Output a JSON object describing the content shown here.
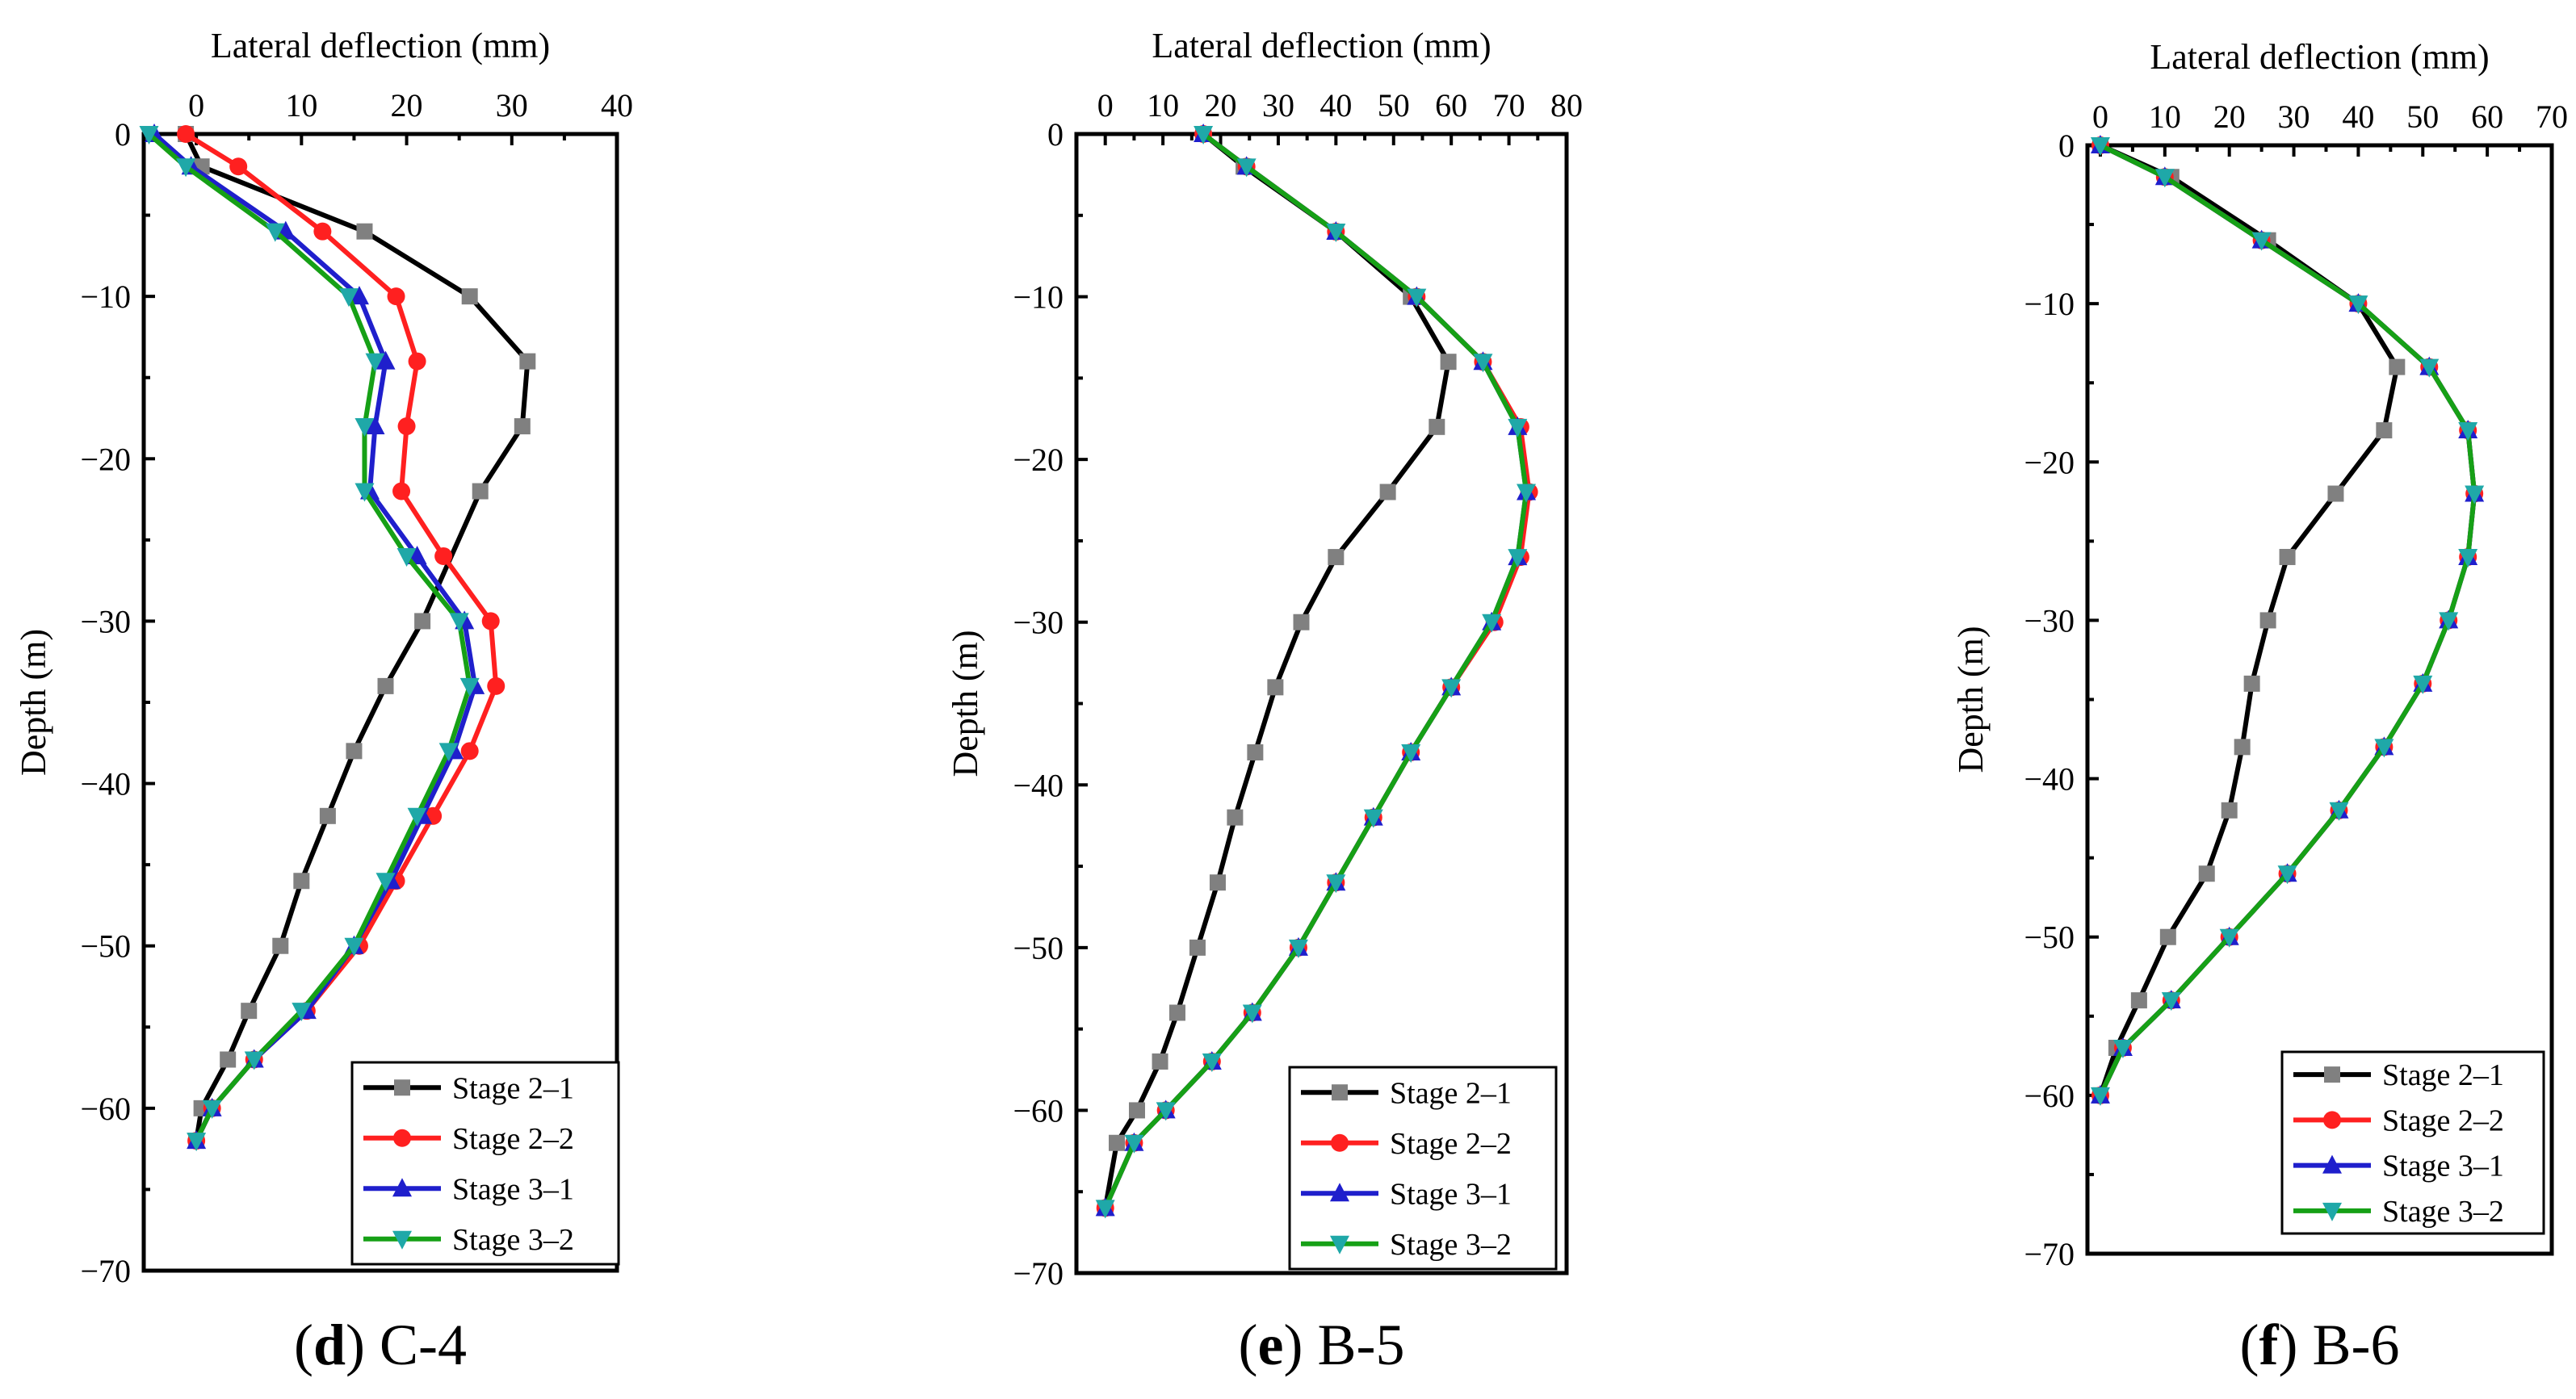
{
  "colors": {
    "stage_2_1": "#000000",
    "marker_2_1": "#808080",
    "stage_2_2": "#ff2020",
    "stage_3_1": "#1f1fcc",
    "stage_3_2": "#16a016",
    "marker_3_x": "#1fa8a8"
  },
  "chart_data": [
    {
      "id": "d",
      "type": "line",
      "title": "C-4",
      "caption_letter": "d",
      "xlabel": "Lateral deflection (mm)",
      "ylabel": "Depth (m)",
      "xlim": [
        -5,
        40
      ],
      "ylim": [
        -70,
        0
      ],
      "xticks": [
        0,
        10,
        20,
        30,
        40
      ],
      "yticks": [
        0,
        -10,
        -20,
        -30,
        -40,
        -50,
        -60,
        -70
      ],
      "legend_position": "bottom-right",
      "series": [
        {
          "name": "Stage 2–1",
          "color_key": "stage_2_1",
          "marker_color_key": "marker_2_1",
          "marker": "square",
          "points": [
            [
              -1,
              0
            ],
            [
              0.5,
              -2
            ],
            [
              16,
              -6
            ],
            [
              26,
              -10
            ],
            [
              31.5,
              -14
            ],
            [
              31,
              -18
            ],
            [
              27,
              -22
            ],
            [
              21.5,
              -30
            ],
            [
              18,
              -34
            ],
            [
              15,
              -38
            ],
            [
              12.5,
              -42
            ],
            [
              10,
              -46
            ],
            [
              8,
              -50
            ],
            [
              5,
              -54
            ],
            [
              3,
              -57
            ],
            [
              0.5,
              -60
            ],
            [
              0,
              -62
            ]
          ]
        },
        {
          "name": "Stage 2–2",
          "color_key": "stage_2_2",
          "marker_color_key": "stage_2_2",
          "marker": "circle",
          "points": [
            [
              -1,
              0
            ],
            [
              4,
              -2
            ],
            [
              12,
              -6
            ],
            [
              19,
              -10
            ],
            [
              21,
              -14
            ],
            [
              20,
              -18
            ],
            [
              19.5,
              -22
            ],
            [
              23.5,
              -26
            ],
            [
              28,
              -30
            ],
            [
              28.5,
              -34
            ],
            [
              26,
              -38
            ],
            [
              22.5,
              -42
            ],
            [
              19,
              -46
            ],
            [
              15.5,
              -50
            ],
            [
              10.5,
              -54
            ],
            [
              5.5,
              -57
            ],
            [
              1.5,
              -60
            ],
            [
              0,
              -62
            ]
          ]
        },
        {
          "name": "Stage 3–1",
          "color_key": "stage_3_1",
          "marker_color_key": "stage_3_1",
          "marker": "triangle-up",
          "points": [
            [
              -4,
              0
            ],
            [
              -0.5,
              -2
            ],
            [
              8.5,
              -6
            ],
            [
              15.5,
              -10
            ],
            [
              18,
              -14
            ],
            [
              17,
              -18
            ],
            [
              16.5,
              -22
            ],
            [
              21,
              -26
            ],
            [
              25.5,
              -30
            ],
            [
              26.5,
              -34
            ],
            [
              24.5,
              -38
            ],
            [
              21.5,
              -42
            ],
            [
              18.5,
              -46
            ],
            [
              15,
              -50
            ],
            [
              10.5,
              -54
            ],
            [
              5.5,
              -57
            ],
            [
              1.5,
              -60
            ],
            [
              0,
              -62
            ]
          ]
        },
        {
          "name": "Stage 3–2",
          "color_key": "stage_3_2",
          "marker_color_key": "marker_3_x",
          "marker": "triangle-down",
          "points": [
            [
              -4.5,
              0
            ],
            [
              -1,
              -2
            ],
            [
              7.5,
              -6
            ],
            [
              14.5,
              -10
            ],
            [
              17,
              -14
            ],
            [
              16,
              -18
            ],
            [
              16,
              -22
            ],
            [
              20,
              -26
            ],
            [
              25,
              -30
            ],
            [
              26,
              -34
            ],
            [
              24,
              -38
            ],
            [
              21,
              -42
            ],
            [
              18,
              -46
            ],
            [
              15,
              -50
            ],
            [
              10,
              -54
            ],
            [
              5.5,
              -57
            ],
            [
              1.5,
              -60
            ],
            [
              0,
              -62
            ]
          ]
        }
      ]
    },
    {
      "id": "e",
      "type": "line",
      "title": "B-5",
      "caption_letter": "e",
      "xlabel": "Lateral deflection (mm)",
      "ylabel": "Depth (m)",
      "xlim": [
        -5,
        80
      ],
      "ylim": [
        -70,
        0
      ],
      "xticks": [
        0,
        10,
        20,
        30,
        40,
        50,
        60,
        70,
        80
      ],
      "yticks": [
        0,
        -10,
        -20,
        -30,
        -40,
        -50,
        -60,
        -70
      ],
      "legend_position": "bottom-right",
      "series": [
        {
          "name": "Stage 2–1",
          "color_key": "stage_2_1",
          "marker_color_key": "marker_2_1",
          "marker": "square",
          "points": [
            [
              17,
              0
            ],
            [
              24,
              -2
            ],
            [
              40,
              -6
            ],
            [
              53,
              -10
            ],
            [
              59.5,
              -14
            ],
            [
              57.5,
              -18
            ],
            [
              49,
              -22
            ],
            [
              40,
              -26
            ],
            [
              34,
              -30
            ],
            [
              29.5,
              -34
            ],
            [
              26,
              -38
            ],
            [
              22.5,
              -42
            ],
            [
              19.5,
              -46
            ],
            [
              16,
              -50
            ],
            [
              12.5,
              -54
            ],
            [
              9.5,
              -57
            ],
            [
              5.5,
              -60
            ],
            [
              2,
              -62
            ],
            [
              0,
              -66
            ]
          ]
        },
        {
          "name": "Stage 2–2",
          "color_key": "stage_2_2",
          "marker_color_key": "stage_2_2",
          "marker": "circle",
          "points": [
            [
              17,
              0
            ],
            [
              24.5,
              -2
            ],
            [
              40,
              -6
            ],
            [
              54,
              -10
            ],
            [
              65.5,
              -14
            ],
            [
              72,
              -18
            ],
            [
              73.5,
              -22
            ],
            [
              72,
              -26
            ],
            [
              67.5,
              -30
            ],
            [
              60,
              -34
            ],
            [
              53,
              -38
            ],
            [
              46.5,
              -42
            ],
            [
              40,
              -46
            ],
            [
              33.5,
              -50
            ],
            [
              25.5,
              -54
            ],
            [
              18.5,
              -57
            ],
            [
              10.5,
              -60
            ],
            [
              5,
              -62
            ],
            [
              0,
              -66
            ]
          ]
        },
        {
          "name": "Stage 3–1",
          "color_key": "stage_3_1",
          "marker_color_key": "stage_3_1",
          "marker": "triangle-up",
          "points": [
            [
              17,
              0
            ],
            [
              24.5,
              -2
            ],
            [
              40,
              -6
            ],
            [
              54,
              -10
            ],
            [
              65.5,
              -14
            ],
            [
              71.5,
              -18
            ],
            [
              73,
              -22
            ],
            [
              71.5,
              -26
            ],
            [
              67,
              -30
            ],
            [
              60,
              -34
            ],
            [
              53,
              -38
            ],
            [
              46.5,
              -42
            ],
            [
              40,
              -46
            ],
            [
              33.5,
              -50
            ],
            [
              25.5,
              -54
            ],
            [
              18.5,
              -57
            ],
            [
              10.5,
              -60
            ],
            [
              5,
              -62
            ],
            [
              0,
              -66
            ]
          ]
        },
        {
          "name": "Stage 3–2",
          "color_key": "stage_3_2",
          "marker_color_key": "marker_3_x",
          "marker": "triangle-down",
          "points": [
            [
              17,
              0
            ],
            [
              24.5,
              -2
            ],
            [
              40,
              -6
            ],
            [
              54,
              -10
            ],
            [
              65.5,
              -14
            ],
            [
              71.5,
              -18
            ],
            [
              73,
              -22
            ],
            [
              71.5,
              -26
            ],
            [
              67,
              -30
            ],
            [
              60,
              -34
            ],
            [
              53,
              -38
            ],
            [
              46.5,
              -42
            ],
            [
              40,
              -46
            ],
            [
              33.5,
              -50
            ],
            [
              25.5,
              -54
            ],
            [
              18.5,
              -57
            ],
            [
              10.5,
              -60
            ],
            [
              5,
              -62
            ],
            [
              0,
              -66
            ]
          ]
        }
      ]
    },
    {
      "id": "f",
      "type": "line",
      "title": "B-6",
      "caption_letter": "f",
      "xlabel": "Lateral deflection (mm)",
      "ylabel": "Depth (m)",
      "xlim": [
        -2,
        70
      ],
      "ylim": [
        -70,
        0
      ],
      "xticks": [
        0,
        10,
        20,
        30,
        40,
        50,
        60,
        70
      ],
      "yticks": [
        0,
        -10,
        -20,
        -30,
        -40,
        -50,
        -60,
        -70
      ],
      "legend_position": "bottom-right",
      "series": [
        {
          "name": "Stage 2–1",
          "color_key": "stage_2_1",
          "marker_color_key": "marker_2_1",
          "marker": "square",
          "points": [
            [
              0,
              0
            ],
            [
              11,
              -2
            ],
            [
              26,
              -6
            ],
            [
              40,
              -10
            ],
            [
              46,
              -14
            ],
            [
              44,
              -18
            ],
            [
              36.5,
              -22
            ],
            [
              29,
              -26
            ],
            [
              26,
              -30
            ],
            [
              23.5,
              -34
            ],
            [
              22,
              -38
            ],
            [
              20,
              -42
            ],
            [
              16.5,
              -46
            ],
            [
              10.5,
              -50
            ],
            [
              6,
              -54
            ],
            [
              2.5,
              -57
            ],
            [
              0,
              -60
            ]
          ]
        },
        {
          "name": "Stage 2–2",
          "color_key": "stage_2_2",
          "marker_color_key": "stage_2_2",
          "marker": "circle",
          "points": [
            [
              0,
              0
            ],
            [
              10,
              -2
            ],
            [
              25,
              -6
            ],
            [
              40,
              -10
            ],
            [
              51,
              -14
            ],
            [
              57,
              -18
            ],
            [
              58,
              -22
            ],
            [
              57,
              -26
            ],
            [
              54,
              -30
            ],
            [
              50,
              -34
            ],
            [
              44,
              -38
            ],
            [
              37,
              -42
            ],
            [
              29,
              -46
            ],
            [
              20,
              -50
            ],
            [
              11,
              -54
            ],
            [
              3.5,
              -57
            ],
            [
              0,
              -60
            ]
          ]
        },
        {
          "name": "Stage 3–1",
          "color_key": "stage_3_1",
          "marker_color_key": "stage_3_1",
          "marker": "triangle-up",
          "points": [
            [
              0,
              0
            ],
            [
              10,
              -2
            ],
            [
              25,
              -6
            ],
            [
              40,
              -10
            ],
            [
              51,
              -14
            ],
            [
              57,
              -18
            ],
            [
              58,
              -22
            ],
            [
              57,
              -26
            ],
            [
              54,
              -30
            ],
            [
              50,
              -34
            ],
            [
              44,
              -38
            ],
            [
              37,
              -42
            ],
            [
              29,
              -46
            ],
            [
              20,
              -50
            ],
            [
              11,
              -54
            ],
            [
              3.5,
              -57
            ],
            [
              0,
              -60
            ]
          ]
        },
        {
          "name": "Stage 3–2",
          "color_key": "stage_3_2",
          "marker_color_key": "marker_3_x",
          "marker": "triangle-down",
          "points": [
            [
              0,
              0
            ],
            [
              10,
              -2
            ],
            [
              25,
              -6
            ],
            [
              40,
              -10
            ],
            [
              51,
              -14
            ],
            [
              57,
              -18
            ],
            [
              58,
              -22
            ],
            [
              57,
              -26
            ],
            [
              54,
              -30
            ],
            [
              50,
              -34
            ],
            [
              44,
              -38
            ],
            [
              37,
              -42
            ],
            [
              29,
              -46
            ],
            [
              20,
              -50
            ],
            [
              11,
              -54
            ],
            [
              3.5,
              -57
            ],
            [
              0,
              -60
            ]
          ]
        }
      ]
    }
  ]
}
